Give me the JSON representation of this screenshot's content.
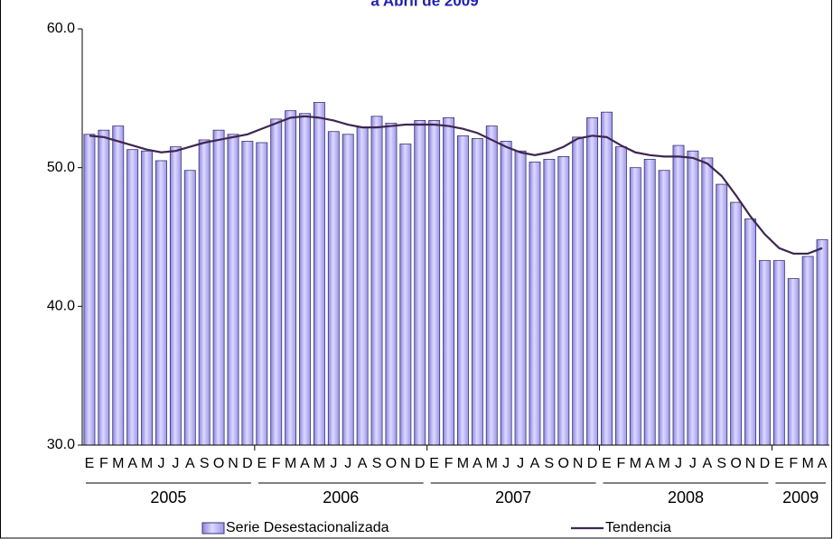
{
  "chart_data": {
    "type": "bar-line",
    "title": "a Abril de 2009",
    "categories": [
      "E",
      "F",
      "M",
      "A",
      "M",
      "J",
      "J",
      "A",
      "S",
      "O",
      "N",
      "D",
      "E",
      "F",
      "M",
      "A",
      "M",
      "J",
      "J",
      "A",
      "S",
      "O",
      "N",
      "D",
      "E",
      "F",
      "M",
      "A",
      "M",
      "J",
      "J",
      "A",
      "S",
      "O",
      "N",
      "D",
      "E",
      "F",
      "M",
      "A",
      "M",
      "J",
      "J",
      "A",
      "S",
      "O",
      "N",
      "D",
      "E",
      "F",
      "M",
      "A"
    ],
    "years": [
      "2005",
      "2006",
      "2007",
      "2008",
      "2009"
    ],
    "series": [
      {
        "name": "Serie Desestacionalizada",
        "type": "bar",
        "color": "#b4aef2",
        "values": [
          52.4,
          52.7,
          53.0,
          51.3,
          51.2,
          50.5,
          51.5,
          49.8,
          52.0,
          52.7,
          52.4,
          51.9,
          51.8,
          53.5,
          54.1,
          53.9,
          54.7,
          52.6,
          52.4,
          52.9,
          53.7,
          53.2,
          51.7,
          53.4,
          53.4,
          53.6,
          52.3,
          52.1,
          53.0,
          51.9,
          51.2,
          50.4,
          50.6,
          50.8,
          52.2,
          53.6,
          54.0,
          51.5,
          50.0,
          50.6,
          49.8,
          51.6,
          51.2,
          50.7,
          48.8,
          47.5,
          46.3,
          43.3,
          43.3,
          42.0,
          43.6,
          44.8
        ]
      },
      {
        "name": "Tendencia",
        "type": "line",
        "color": "#3d2650",
        "values": [
          52.3,
          52.2,
          51.9,
          51.6,
          51.3,
          51.1,
          51.2,
          51.5,
          51.8,
          52.0,
          52.2,
          52.4,
          52.8,
          53.2,
          53.6,
          53.7,
          53.6,
          53.4,
          53.1,
          52.9,
          52.9,
          53.0,
          53.1,
          53.1,
          53.1,
          53.0,
          52.8,
          52.5,
          52.0,
          51.5,
          51.1,
          50.9,
          51.1,
          51.5,
          52.1,
          52.3,
          52.2,
          51.6,
          51.1,
          50.9,
          50.8,
          50.8,
          50.7,
          50.3,
          49.4,
          48.0,
          46.5,
          45.2,
          44.2,
          43.8,
          43.8,
          44.2
        ]
      }
    ],
    "ylim": [
      30,
      60
    ],
    "yticks": [
      {
        "value": 30,
        "label": "30.0"
      },
      {
        "value": 40,
        "label": "40.0"
      },
      {
        "value": 50,
        "label": "50.0"
      },
      {
        "value": 60,
        "label": "60.0"
      }
    ],
    "grid": false
  }
}
